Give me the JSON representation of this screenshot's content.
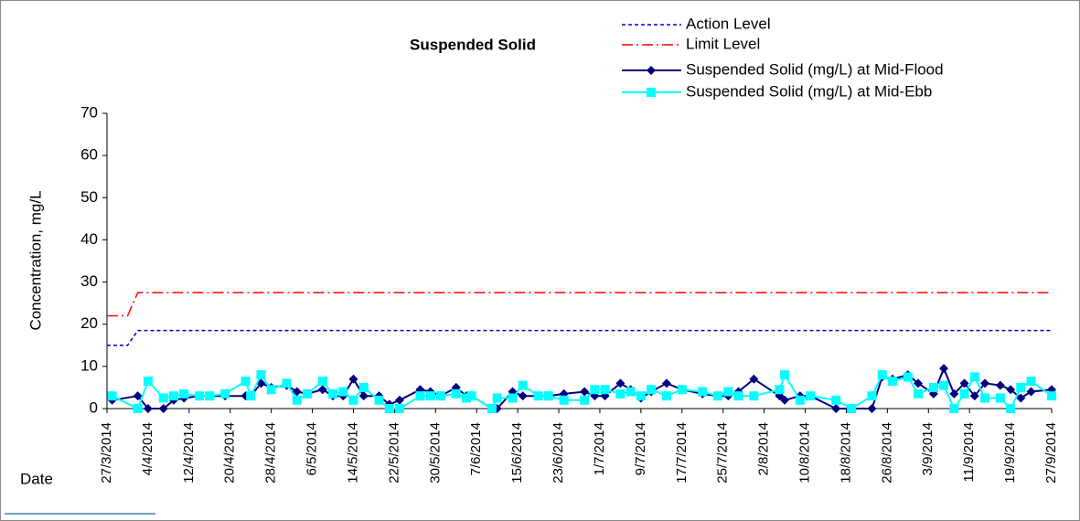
{
  "chart_data": {
    "type": "line",
    "title": "Suspended Solid",
    "y_label": "Concentration, mg/L",
    "x_label": "Date",
    "xlim": [
      "27/3/2014",
      "27/9/2014"
    ],
    "xticks": [
      "27/3/2014",
      "4/4/2014",
      "12/4/2014",
      "20/4/2014",
      "28/4/2014",
      "6/5/2014",
      "14/5/2014",
      "22/5/2014",
      "30/5/2014",
      "7/6/2014",
      "15/6/2014",
      "23/6/2014",
      "1/7/2014",
      "9/7/2014",
      "17/7/2014",
      "25/7/2014",
      "2/8/2014",
      "10/8/2014",
      "18/8/2014",
      "26/8/2014",
      "3/9/2014",
      "11/9/2014",
      "19/9/2014",
      "27/9/2014"
    ],
    "ylim": [
      0,
      70
    ],
    "yticks": [
      0,
      10,
      20,
      30,
      40,
      50,
      60,
      70
    ],
    "x": [
      "28/3/2014",
      "2/4/2014",
      "4/4/2014",
      "7/4/2014",
      "9/4/2014",
      "11/4/2014",
      "14/4/2014",
      "16/4/2014",
      "19/4/2014",
      "23/4/2014",
      "24/4/2014",
      "26/4/2014",
      "28/4/2014",
      "1/5/2014",
      "3/5/2014",
      "5/5/2014",
      "8/5/2014",
      "10/5/2014",
      "12/5/2014",
      "14/5/2014",
      "16/5/2014",
      "19/5/2014",
      "21/5/2014",
      "23/5/2014",
      "27/5/2014",
      "29/5/2014",
      "31/5/2014",
      "3/6/2014",
      "5/6/2014",
      "6/6/2014",
      "10/6/2014",
      "11/6/2014",
      "14/6/2014",
      "16/6/2014",
      "19/6/2014",
      "21/6/2014",
      "24/6/2014",
      "28/6/2014",
      "30/6/2014",
      "2/7/2014",
      "5/7/2014",
      "7/7/2014",
      "9/7/2014",
      "11/7/2014",
      "14/7/2014",
      "17/7/2014",
      "21/7/2014",
      "24/7/2014",
      "26/7/2014",
      "28/7/2014",
      "31/7/2014",
      "5/8/2014",
      "6/8/2014",
      "9/8/2014",
      "11/8/2014",
      "16/8/2014",
      "19/8/2014",
      "23/8/2014",
      "25/8/2014",
      "27/8/2014",
      "30/8/2014",
      "1/9/2014",
      "4/9/2014",
      "6/9/2014",
      "8/9/2014",
      "10/9/2014",
      "12/9/2014",
      "14/9/2014",
      "17/9/2014",
      "19/9/2014",
      "21/9/2014",
      "23/9/2014",
      "27/9/2014"
    ],
    "series": [
      {
        "name": "Action Level",
        "color": "#0000cc",
        "style": "dashed",
        "x": [
          "27/3/2014",
          "31/3/2014",
          "2/4/2014",
          "27/9/2014"
        ],
        "values": [
          15,
          15,
          18.5,
          18.5
        ]
      },
      {
        "name": "Limit Level",
        "color": "#ff0000",
        "style": "dashdot",
        "x": [
          "27/3/2014",
          "31/3/2014",
          "2/4/2014",
          "27/9/2014"
        ],
        "values": [
          22,
          22,
          27.5,
          27.5
        ]
      },
      {
        "name": "Suspended Solid (mg/L) at Mid-Flood",
        "color": "#000080",
        "style": "solid",
        "marker": "diamond",
        "values": [
          2,
          3,
          0,
          0,
          2,
          2.5,
          3,
          3,
          3,
          3,
          3,
          6,
          5,
          5.5,
          4,
          3.5,
          4.5,
          3,
          3,
          7,
          3,
          3,
          1,
          2,
          4.5,
          4,
          3,
          5,
          3,
          3,
          0,
          0,
          4,
          3,
          3,
          3,
          3.5,
          4,
          3,
          3,
          6,
          4.5,
          2.5,
          4,
          6,
          4.5,
          3.5,
          3,
          3,
          4,
          7,
          3,
          2,
          3,
          3,
          0,
          0,
          0,
          7.5,
          7,
          8,
          6,
          3.5,
          9.5,
          3.5,
          6,
          3,
          6,
          5.5,
          4.5,
          2.5,
          4,
          4.5
        ]
      },
      {
        "name": "Suspended Solid (mg/L) at Mid-Ebb",
        "color": "#00ffff",
        "style": "solid",
        "marker": "square",
        "values": [
          3,
          0,
          6.5,
          2.5,
          3,
          3.5,
          3,
          3,
          3.5,
          6.5,
          3,
          8,
          4.5,
          6,
          2,
          3.5,
          6.5,
          3.5,
          4,
          2,
          5,
          2,
          0,
          0,
          3,
          3,
          3,
          3.5,
          2.5,
          3,
          0,
          2.5,
          2.5,
          5.5,
          3,
          3,
          2,
          2,
          4.5,
          4.5,
          3.5,
          4,
          3,
          4.5,
          3,
          4.5,
          4,
          3,
          4,
          3,
          3,
          4.5,
          8,
          2,
          3,
          2,
          0,
          3,
          8,
          6.5,
          7.5,
          3.5,
          5,
          5.5,
          0,
          3.5,
          7.5,
          2.5,
          2.5,
          0,
          5,
          6.5,
          3
        ]
      }
    ]
  }
}
